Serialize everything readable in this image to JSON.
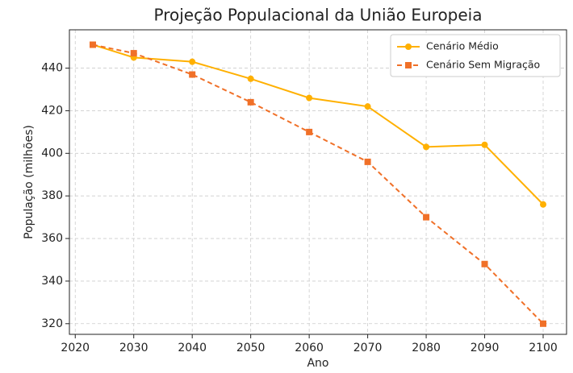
{
  "chart_data": {
    "type": "line",
    "title": "Projeção Populacional da União Europeia",
    "xlabel": "Ano",
    "ylabel": "População (milhões)",
    "x": [
      2023,
      2030,
      2040,
      2050,
      2060,
      2070,
      2080,
      2090,
      2100
    ],
    "series": [
      {
        "name": "Cenário Médio",
        "color": "#ffb000",
        "marker": "circle",
        "dash": "solid",
        "values": [
          451,
          445,
          443,
          435,
          426,
          422,
          403,
          404,
          376
        ]
      },
      {
        "name": "Cenário Sem Migração",
        "color": "#f07028",
        "marker": "square",
        "dash": "dashed",
        "values": [
          451,
          447,
          437,
          424,
          410,
          396,
          370,
          348,
          320
        ]
      }
    ],
    "xlim": [
      2019,
      2104
    ],
    "xticks": [
      2020,
      2030,
      2040,
      2050,
      2060,
      2070,
      2080,
      2090,
      2100
    ],
    "ylim": [
      315,
      458
    ],
    "yticks": [
      320,
      340,
      360,
      380,
      400,
      420,
      440
    ],
    "grid": true,
    "legend": "upper right"
  }
}
